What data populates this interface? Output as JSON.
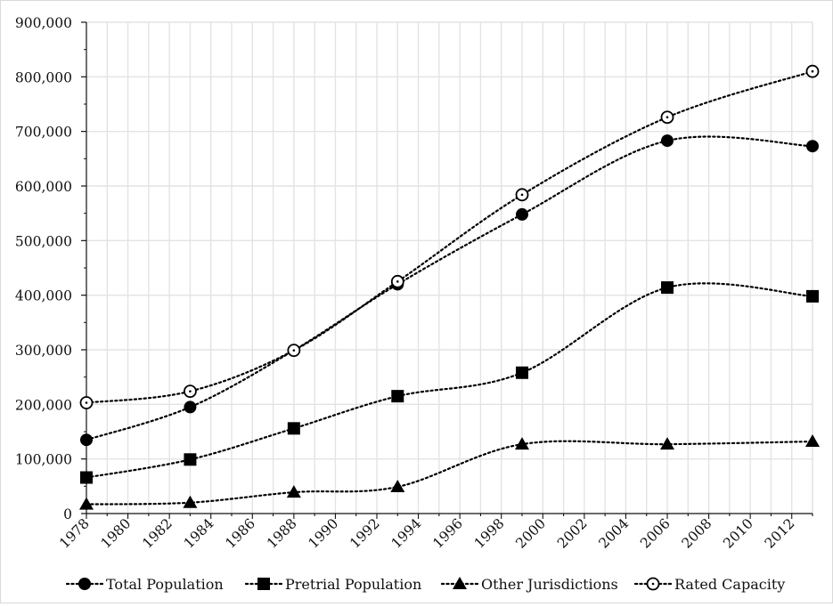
{
  "chart_data": {
    "type": "line",
    "title": "",
    "xlabel": "",
    "ylabel": "",
    "xlim": [
      1978,
      2013
    ],
    "ylim": [
      0,
      900000
    ],
    "x_ticks": [
      1978,
      1980,
      1982,
      1984,
      1986,
      1988,
      1990,
      1992,
      1994,
      1996,
      1998,
      2000,
      2002,
      2004,
      2006,
      2008,
      2010,
      2012
    ],
    "y_ticks": [
      0,
      100000,
      200000,
      300000,
      400000,
      500000,
      600000,
      700000,
      800000,
      900000
    ],
    "x_tick_labels": [
      "1978",
      "1980",
      "1982",
      "1984",
      "1986",
      "1988",
      "1990",
      "1992",
      "1994",
      "1996",
      "1998",
      "2000",
      "2002",
      "2004",
      "2006",
      "2008",
      "2010",
      "2012"
    ],
    "y_tick_labels": [
      "0",
      "100,000",
      "200,000",
      "300,000",
      "400,000",
      "500,000",
      "600,000",
      "700,000",
      "800,000",
      "900,000"
    ],
    "grid": true,
    "legend_position": "bottom",
    "series": [
      {
        "name": "Total Population",
        "marker": "filled-circle",
        "color": "#000000",
        "x": [
          1978,
          1983,
          1988,
          1993,
          1999,
          2006,
          2013
        ],
        "values": [
          135000,
          195000,
          299000,
          420000,
          548000,
          683000,
          673000
        ]
      },
      {
        "name": "Pretrial Population",
        "marker": "filled-square",
        "color": "#000000",
        "x": [
          1978,
          1983,
          1988,
          1993,
          1999,
          2006,
          2013
        ],
        "values": [
          66000,
          99000,
          156000,
          215000,
          258000,
          414000,
          398000
        ]
      },
      {
        "name": "Other Jurisdictions",
        "marker": "filled-triangle",
        "color": "#000000",
        "x": [
          1978,
          1983,
          1988,
          1993,
          1999,
          2006,
          2013
        ],
        "values": [
          17000,
          20000,
          39000,
          49000,
          127000,
          127000,
          132000
        ]
      },
      {
        "name": "Rated Capacity",
        "marker": "open-circle",
        "color": "#000000",
        "x": [
          1978,
          1983,
          1988,
          1993,
          1999,
          2006,
          2013
        ],
        "values": [
          203000,
          224000,
          299000,
          425000,
          584000,
          726000,
          810000
        ]
      }
    ]
  }
}
